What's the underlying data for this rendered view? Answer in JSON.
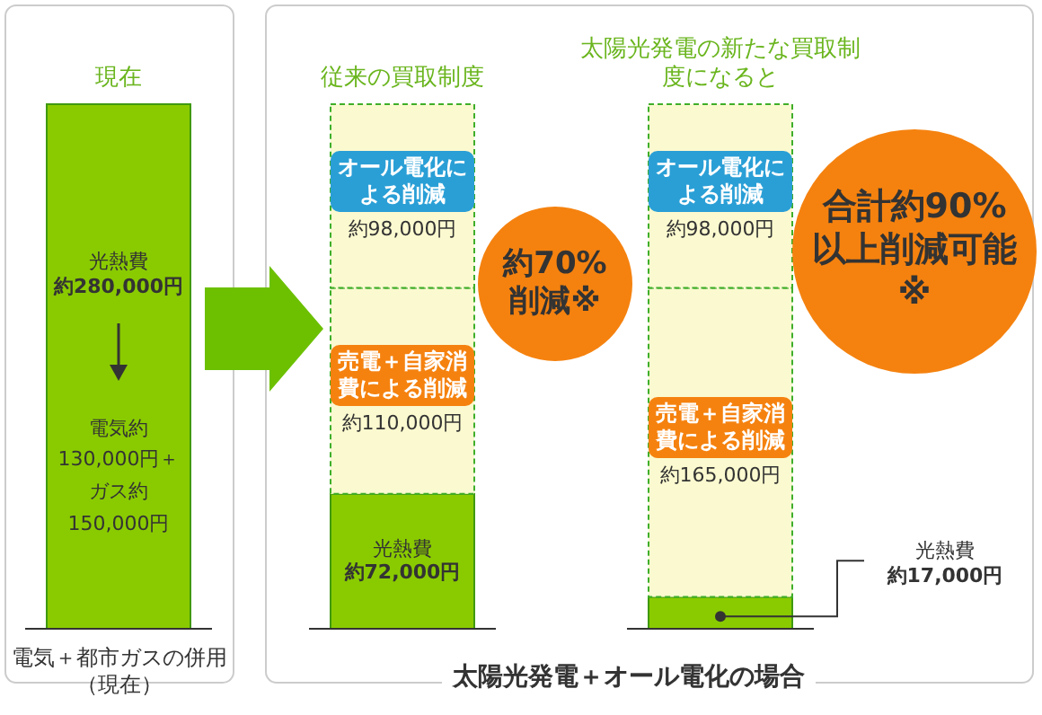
{
  "chart_data": {
    "type": "bar",
    "stacked": true,
    "categories": [
      "現在",
      "従来の買取制度",
      "太陽光発電の新たな買取制度になると"
    ],
    "series": [
      {
        "name": "光熱費",
        "color": "#8acb00",
        "values": [
          280000,
          72000,
          17000
        ],
        "value_labels": [
          "約280,000円",
          "約72,000円",
          "約17,000円"
        ]
      },
      {
        "name": "売電＋自家消費による削減",
        "color": "#fbf9cf",
        "values": [
          null,
          110000,
          165000
        ],
        "value_labels": [
          null,
          "約110,000円",
          "約165,000円"
        ]
      },
      {
        "name": "オール電化による削減",
        "color": "#fbf9cf",
        "values": [
          null,
          98000,
          98000
        ],
        "value_labels": [
          null,
          "約98,000円",
          "約98,000円"
        ]
      }
    ],
    "annotations": [
      "電気＋都市ガスの併用（現在）",
      "約70%削減※",
      "合計約90%以上削減可能※",
      "太陽光発電＋オール電化の場合",
      "電気約130,000円＋ガス約150,000円"
    ]
  }
}
